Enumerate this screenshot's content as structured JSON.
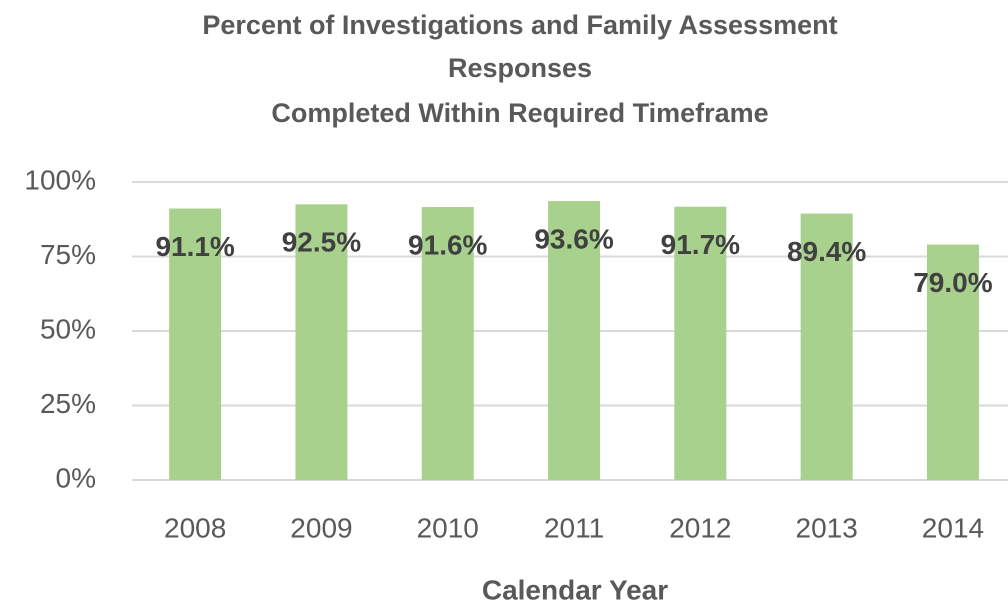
{
  "chart_data": {
    "type": "bar",
    "title": [
      "Percent of Investigations and Family Assessment",
      "Responses",
      "Completed Within Required Timeframe"
    ],
    "x_label": "Calendar Year",
    "categories": [
      "2008",
      "2009",
      "2010",
      "2011",
      "2012",
      "2013",
      "2014"
    ],
    "values": [
      91.1,
      92.5,
      91.6,
      93.6,
      91.7,
      89.4,
      79.0
    ],
    "value_labels": [
      "91.1%",
      "92.5%",
      "91.6%",
      "93.6%",
      "91.7%",
      "89.4%",
      "79.0%"
    ],
    "color": "#a9d18e",
    "ylim": [
      0,
      100
    ],
    "yticks": [
      {
        "value": 0,
        "label": "0%"
      },
      {
        "value": 25,
        "label": "25%"
      },
      {
        "value": 50,
        "label": "50%"
      },
      {
        "value": 75,
        "label": "75%"
      },
      {
        "value": 100,
        "label": "100%"
      }
    ],
    "grid": true
  }
}
